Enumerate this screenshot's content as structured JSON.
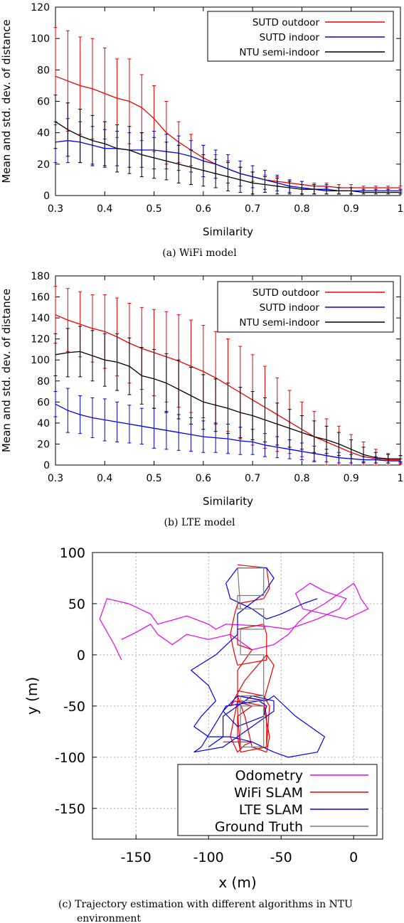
{
  "chart_data": [
    {
      "type": "line",
      "ylabel": "Mean and std. dev. of distance",
      "xlabel": "Similarity",
      "caption": "(a) WiFi model",
      "xlim": [
        0.3,
        1
      ],
      "ylim": [
        0,
        120
      ],
      "xticks": [
        "0.3",
        "0.4",
        "0.5",
        "0.6",
        "0.7",
        "0.8",
        "0.9",
        "1"
      ],
      "yticks": [
        "0",
        "20",
        "40",
        "60",
        "80",
        "100",
        "120"
      ],
      "error_bars": true,
      "legend_position": "top-right",
      "x": [
        0.3,
        0.325,
        0.35,
        0.375,
        0.4,
        0.425,
        0.45,
        0.475,
        0.5,
        0.525,
        0.55,
        0.575,
        0.6,
        0.625,
        0.65,
        0.675,
        0.7,
        0.725,
        0.75,
        0.775,
        0.8,
        0.825,
        0.85,
        0.875,
        0.9,
        0.925,
        0.95,
        0.975,
        1.0
      ],
      "series": [
        {
          "name": "SUTD outdoor",
          "color": "#ee0000",
          "values": [
            76,
            73,
            70,
            68,
            65,
            62,
            60,
            56,
            49,
            40,
            34,
            29,
            24,
            20,
            17,
            14,
            12,
            10,
            9,
            8,
            7,
            6,
            6,
            5,
            5,
            5,
            5,
            5,
            5
          ],
          "std": [
            31,
            32,
            31,
            32,
            29,
            25,
            27,
            21,
            21,
            20,
            13,
            10,
            8,
            6,
            5,
            4,
            3,
            3,
            3,
            2,
            2,
            2,
            2,
            2,
            2,
            1,
            1,
            1,
            1
          ]
        },
        {
          "name": "SUTD indoor",
          "color": "#0000ee",
          "values": [
            34,
            35,
            34,
            32,
            30,
            30,
            29,
            29,
            29,
            28,
            27,
            25,
            22,
            20,
            17,
            14,
            12,
            10,
            8,
            6,
            5,
            4,
            4,
            3,
            3,
            3,
            3,
            3,
            3
          ],
          "std": [
            13,
            14,
            13,
            12,
            12,
            11,
            11,
            11,
            12,
            11,
            11,
            10,
            10,
            9,
            9,
            8,
            7,
            6,
            5,
            4,
            4,
            3,
            3,
            2,
            2,
            1,
            1,
            1,
            1
          ]
        },
        {
          "name": "NTU semi-indoor",
          "color": "#000000",
          "values": [
            47,
            42,
            38,
            35,
            33,
            30,
            29,
            26,
            24,
            22,
            20,
            18,
            16,
            14,
            12,
            10,
            8,
            7,
            6,
            5,
            4,
            4,
            3,
            3,
            3,
            2,
            2,
            2,
            2
          ],
          "std": [
            17,
            17,
            17,
            16,
            14,
            15,
            15,
            14,
            13,
            12,
            12,
            11,
            10,
            9,
            9,
            8,
            7,
            5,
            5,
            4,
            3,
            3,
            2,
            2,
            2,
            1,
            1,
            1,
            1
          ]
        }
      ]
    },
    {
      "type": "line",
      "ylabel": "Mean and std. dev. of distance",
      "xlabel": "Similarity",
      "caption": "(b) LTE model",
      "xlim": [
        0.3,
        1
      ],
      "ylim": [
        0,
        180
      ],
      "xticks": [
        "0.3",
        "0.4",
        "0.5",
        "0.6",
        "0.7",
        "0.8",
        "0.9",
        "1"
      ],
      "yticks": [
        "0",
        "20",
        "40",
        "60",
        "80",
        "100",
        "120",
        "140",
        "160",
        "180"
      ],
      "error_bars": true,
      "legend_position": "top-right",
      "x": [
        0.3,
        0.325,
        0.35,
        0.375,
        0.4,
        0.425,
        0.45,
        0.475,
        0.5,
        0.525,
        0.55,
        0.575,
        0.6,
        0.625,
        0.65,
        0.675,
        0.7,
        0.725,
        0.75,
        0.775,
        0.8,
        0.825,
        0.85,
        0.875,
        0.9,
        0.925,
        0.95,
        0.975,
        1.0
      ],
      "series": [
        {
          "name": "SUTD outdoor",
          "color": "#ee0000",
          "values": [
            143,
            138,
            134,
            130,
            127,
            122,
            116,
            111,
            107,
            103,
            99,
            94,
            89,
            83,
            76,
            69,
            62,
            55,
            48,
            41,
            34,
            27,
            22,
            17,
            12,
            8,
            6,
            5,
            5
          ],
          "std": [
            27,
            30,
            31,
            32,
            35,
            37,
            38,
            39,
            41,
            43,
            44,
            44,
            44,
            44,
            44,
            44,
            43,
            39,
            35,
            30,
            26,
            24,
            22,
            20,
            17,
            14,
            9,
            6,
            4
          ]
        },
        {
          "name": "SUTD indoor",
          "color": "#0000ee",
          "values": [
            58,
            52,
            48,
            45,
            43,
            41,
            39,
            37,
            35,
            33,
            31,
            29,
            27,
            26,
            25,
            23,
            22,
            19,
            17,
            15,
            13,
            11,
            9,
            7,
            6,
            5,
            5,
            4,
            4
          ],
          "std": [
            12,
            21,
            18,
            19,
            20,
            19,
            18,
            17,
            19,
            18,
            17,
            16,
            15,
            14,
            14,
            13,
            12,
            11,
            10,
            9,
            8,
            7,
            6,
            5,
            4,
            3,
            3,
            2,
            2
          ]
        },
        {
          "name": "NTU semi-indoor",
          "color": "#000000",
          "values": [
            105,
            107,
            108,
            104,
            100,
            98,
            94,
            85,
            82,
            78,
            72,
            66,
            60,
            57,
            54,
            50,
            47,
            43,
            39,
            35,
            31,
            27,
            24,
            20,
            15,
            10,
            7,
            6,
            6
          ],
          "std": [
            20,
            23,
            24,
            24,
            25,
            27,
            27,
            27,
            28,
            28,
            28,
            27,
            26,
            25,
            24,
            24,
            23,
            21,
            20,
            18,
            16,
            15,
            13,
            11,
            9,
            7,
            5,
            4,
            3
          ]
        }
      ]
    },
    {
      "type": "line",
      "ylabel": "y (m)",
      "xlabel": "x (m)",
      "caption": "(c) Trajectory estimation with different algorithms in NTU environment",
      "xlim": [
        -180,
        20
      ],
      "ylim": [
        -180,
        100
      ],
      "xticks": [
        "-150",
        "-100",
        "-50",
        "0"
      ],
      "yticks": [
        "-150",
        "-100",
        "-50",
        "0",
        "50",
        "100"
      ],
      "grid": true,
      "legend_position": "bottom-right",
      "series": [
        {
          "name": "Odometry",
          "color": "#ee00ee",
          "x": [
            -160,
            -165,
            -175,
            -170,
            -155,
            -140,
            -135,
            -115,
            -100,
            -95,
            -88,
            -60,
            -45,
            -25,
            -10,
            -5,
            -20,
            -30,
            -40,
            -35,
            -20,
            -5,
            10,
            5,
            2,
            0,
            -10,
            -20,
            -30,
            -38,
            -45,
            -55,
            -70,
            -85,
            -100,
            -115,
            -125,
            -135,
            -140,
            -150,
            -160
          ],
          "y": [
            -5,
            10,
            35,
            55,
            50,
            40,
            30,
            38,
            30,
            25,
            30,
            28,
            25,
            35,
            45,
            55,
            62,
            70,
            60,
            45,
            40,
            35,
            45,
            55,
            65,
            70,
            60,
            50,
            42,
            32,
            20,
            10,
            5,
            20,
            15,
            20,
            10,
            20,
            30,
            22,
            15
          ]
        },
        {
          "name": "WiFi SLAM",
          "color": "#ee0000",
          "x": [
            -80,
            -60,
            -58,
            -62,
            -80,
            -82,
            -85,
            -82,
            -80,
            -60,
            -60,
            -62,
            -80,
            -80,
            -70,
            -75,
            -80,
            -80,
            -62,
            -60,
            -55,
            -60,
            -75,
            -85,
            -82,
            -70,
            -80,
            -80,
            -78,
            -60,
            -60,
            -62,
            -80,
            -80,
            -78,
            -60,
            -58,
            -62,
            -80,
            -80,
            -75,
            -70,
            -60,
            -58,
            -62,
            -80,
            -85,
            -80,
            -75,
            -70,
            -90
          ],
          "x_note": "",
          "y": [
            88,
            85,
            65,
            55,
            50,
            40,
            20,
            0,
            -10,
            -5,
            20,
            30,
            25,
            10,
            5,
            -5,
            -15,
            -40,
            -45,
            -35,
            -10,
            0,
            -25,
            -50,
            -45,
            -50,
            -60,
            -80,
            -95,
            -90,
            -60,
            -45,
            -40,
            -55,
            -95,
            -90,
            -50,
            -40,
            -35,
            -40,
            -60,
            -90,
            -95,
            -80,
            -50,
            -45,
            -80,
            -95,
            -88,
            -85,
            -85
          ]
        },
        {
          "name": "LTE SLAM",
          "color": "#0000ee",
          "x": [
            -100,
            -95,
            -90,
            -90,
            -75,
            -70,
            -55,
            -55,
            -70,
            -90,
            -110,
            -105,
            -90,
            -88,
            -65,
            -60,
            -62,
            -80,
            -90,
            -80,
            -60,
            -55,
            -40,
            -20,
            -25,
            -45,
            -55,
            -70,
            -85,
            -100,
            -110,
            -105,
            -95,
            -100,
            -112,
            -95,
            -80,
            -80,
            -62,
            -55,
            -60,
            -80,
            -88,
            -85,
            -70,
            -60,
            -50,
            -35,
            -25
          ],
          "y": [
            -90,
            -85,
            -80,
            -60,
            -45,
            -40,
            -45,
            -55,
            -70,
            -90,
            -95,
            -90,
            -55,
            -50,
            -45,
            -50,
            -60,
            -70,
            -55,
            -40,
            -45,
            -40,
            -60,
            -80,
            -95,
            -100,
            -95,
            -85,
            -80,
            -80,
            -70,
            -60,
            -45,
            -30,
            -15,
            0,
            20,
            40,
            60,
            75,
            85,
            85,
            70,
            55,
            45,
            35,
            40,
            50,
            55
          ]
        },
        {
          "name": "Ground Truth",
          "color": "#7a7a7a",
          "x": [
            -80,
            -62,
            -62,
            -80,
            -80,
            -62,
            -62,
            -78,
            -78,
            -62,
            -62,
            -78,
            -78,
            -62,
            -62,
            -78,
            -78,
            -62,
            -62,
            -78,
            -78,
            -62,
            -62,
            -78,
            -80
          ],
          "y": [
            85,
            85,
            58,
            58,
            45,
            45,
            25,
            25,
            0,
            0,
            -40,
            -40,
            -50,
            -50,
            -90,
            -90,
            -45,
            -45,
            0,
            0,
            25,
            25,
            45,
            45,
            85
          ]
        }
      ]
    }
  ]
}
